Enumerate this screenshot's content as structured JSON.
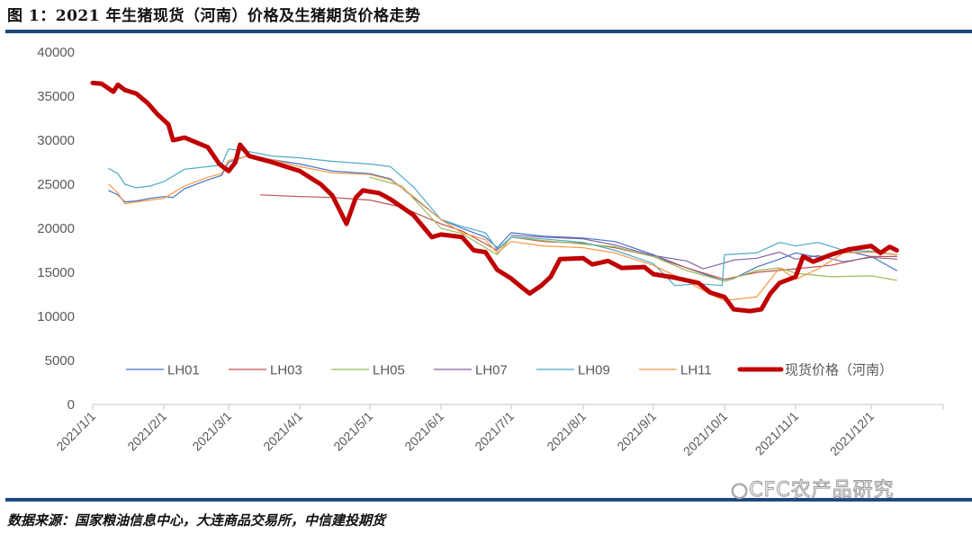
{
  "title": "图 1：2021 年生猪现货（河南）价格及生猪期货价格走势",
  "source": "数据来源：国家粮油信息中心，大连商品交易所，中信建投期货",
  "watermark": "CFC农产品研究",
  "chart_data": {
    "type": "line",
    "title": "图 1：2021 年生猪现货（河南）价格及生猪期货价格走势",
    "xlabel": "",
    "ylabel": "",
    "ylim": [
      0,
      40000
    ],
    "yticks": [
      0,
      5000,
      10000,
      15000,
      20000,
      25000,
      30000,
      35000,
      40000
    ],
    "xticks": [
      "2021/1/1",
      "2021/2/1",
      "2021/3/1",
      "2021/4/1",
      "2021/5/1",
      "2021/6/1",
      "2021/7/1",
      "2021/8/1",
      "2021/9/1",
      "2021/10/1",
      "2021/11/1",
      "2021/12/1"
    ],
    "grid": false,
    "legend_position": "inside-bottom",
    "x_unit": "date (MM-DD, 2021)",
    "series": [
      {
        "name": "LH01",
        "color": "#4472c4",
        "width": 1.2,
        "points": [
          [
            "01-08",
            24300
          ],
          [
            "01-12",
            23800
          ],
          [
            "01-15",
            23000
          ],
          [
            "01-20",
            23100
          ],
          [
            "01-26",
            23400
          ],
          [
            "02-01",
            23600
          ],
          [
            "02-05",
            23500
          ],
          [
            "02-10",
            24500
          ],
          [
            "02-20",
            25500
          ],
          [
            "02-26",
            26000
          ],
          [
            "03-01",
            27500
          ],
          [
            "03-10",
            28300
          ],
          [
            "03-20",
            27800
          ],
          [
            "04-01",
            27300
          ],
          [
            "04-15",
            26500
          ],
          [
            "05-01",
            26200
          ],
          [
            "05-10",
            25600
          ],
          [
            "05-20",
            23500
          ],
          [
            "06-01",
            21000
          ],
          [
            "06-10",
            20000
          ],
          [
            "06-20",
            19000
          ],
          [
            "06-25",
            17800
          ],
          [
            "07-01",
            19500
          ],
          [
            "07-15",
            19100
          ],
          [
            "08-01",
            18900
          ],
          [
            "08-15",
            18500
          ],
          [
            "09-01",
            17000
          ],
          [
            "09-15",
            15500
          ],
          [
            "10-01",
            14000
          ],
          [
            "10-05",
            14300
          ],
          [
            "10-15",
            15600
          ],
          [
            "10-25",
            16500
          ],
          [
            "11-01",
            17200
          ],
          [
            "11-10",
            16700
          ],
          [
            "11-20",
            17500
          ],
          [
            "12-01",
            16800
          ],
          [
            "12-10",
            15500
          ],
          [
            "12-12",
            15200
          ]
        ]
      },
      {
        "name": "LH03",
        "color": "#c0504d",
        "width": 1.2,
        "points": [
          [
            "03-15",
            23800
          ],
          [
            "04-01",
            23600
          ],
          [
            "04-15",
            23500
          ],
          [
            "05-01",
            23200
          ],
          [
            "05-15",
            22400
          ],
          [
            "06-01",
            20500
          ],
          [
            "06-10",
            19700
          ],
          [
            "06-25",
            17500
          ],
          [
            "07-01",
            19000
          ],
          [
            "07-15",
            18500
          ],
          [
            "08-01",
            18300
          ],
          [
            "08-15",
            17800
          ],
          [
            "09-01",
            16800
          ],
          [
            "09-15",
            15500
          ],
          [
            "10-01",
            14200
          ],
          [
            "10-15",
            15000
          ],
          [
            "11-01",
            15400
          ],
          [
            "11-15",
            15800
          ],
          [
            "12-01",
            16800
          ],
          [
            "12-12",
            16800
          ]
        ]
      },
      {
        "name": "LH05",
        "color": "#9bbb59",
        "width": 1.2,
        "points": [
          [
            "05-01",
            25800
          ],
          [
            "05-15",
            24800
          ],
          [
            "06-01",
            20000
          ],
          [
            "06-10",
            19400
          ],
          [
            "06-25",
            17000
          ],
          [
            "07-01",
            19000
          ],
          [
            "07-15",
            18600
          ],
          [
            "08-01",
            18200
          ],
          [
            "08-15",
            17900
          ],
          [
            "09-01",
            16800
          ],
          [
            "09-15",
            15200
          ],
          [
            "10-01",
            14000
          ],
          [
            "10-15",
            15200
          ],
          [
            "10-25",
            15500
          ],
          [
            "11-01",
            14900
          ],
          [
            "11-15",
            14500
          ],
          [
            "12-01",
            14600
          ],
          [
            "12-12",
            14100
          ]
        ]
      },
      {
        "name": "LH07",
        "color": "#8064a2",
        "width": 1.2,
        "points": [
          [
            "07-01",
            19200
          ],
          [
            "07-15",
            19000
          ],
          [
            "08-01",
            18800
          ],
          [
            "08-15",
            18100
          ],
          [
            "09-01",
            16900
          ],
          [
            "09-15",
            16300
          ],
          [
            "09-22",
            15400
          ],
          [
            "09-30",
            16000
          ],
          [
            "10-05",
            16400
          ],
          [
            "10-15",
            16600
          ],
          [
            "10-25",
            17300
          ],
          [
            "11-01",
            16500
          ],
          [
            "11-10",
            16900
          ],
          [
            "11-20",
            16200
          ],
          [
            "12-01",
            16700
          ],
          [
            "12-12",
            16500
          ]
        ]
      },
      {
        "name": "LH09",
        "color": "#4bacc6",
        "width": 1.2,
        "points": [
          [
            "01-08",
            26800
          ],
          [
            "01-12",
            26200
          ],
          [
            "01-15",
            25000
          ],
          [
            "01-20",
            24600
          ],
          [
            "01-26",
            24800
          ],
          [
            "02-01",
            25300
          ],
          [
            "02-10",
            26700
          ],
          [
            "02-20",
            27000
          ],
          [
            "02-26",
            27200
          ],
          [
            "03-01",
            29000
          ],
          [
            "03-10",
            28700
          ],
          [
            "03-20",
            28200
          ],
          [
            "04-01",
            28000
          ],
          [
            "04-15",
            27600
          ],
          [
            "05-01",
            27300
          ],
          [
            "05-10",
            27000
          ],
          [
            "05-20",
            24700
          ],
          [
            "06-01",
            21000
          ],
          [
            "06-10",
            20200
          ],
          [
            "06-20",
            19500
          ],
          [
            "06-25",
            17600
          ],
          [
            "07-01",
            19000
          ],
          [
            "07-15",
            18800
          ],
          [
            "08-01",
            18400
          ],
          [
            "08-15",
            17500
          ],
          [
            "09-01",
            16000
          ],
          [
            "09-10",
            13500
          ],
          [
            "09-20",
            13700
          ],
          [
            "09-30",
            13500
          ],
          [
            "10-01",
            17000
          ],
          [
            "10-15",
            17200
          ],
          [
            "10-25",
            18400
          ],
          [
            "11-01",
            18000
          ],
          [
            "11-10",
            18400
          ],
          [
            "11-20",
            17500
          ],
          [
            "12-01",
            17400
          ],
          [
            "12-12",
            17000
          ]
        ]
      },
      {
        "name": "LH11",
        "color": "#f79646",
        "width": 1.2,
        "points": [
          [
            "01-08",
            25000
          ],
          [
            "01-12",
            24000
          ],
          [
            "01-15",
            22800
          ],
          [
            "01-20",
            23000
          ],
          [
            "01-26",
            23200
          ],
          [
            "02-01",
            23400
          ],
          [
            "02-10",
            24800
          ],
          [
            "02-20",
            25800
          ],
          [
            "02-26",
            26200
          ],
          [
            "03-01",
            27700
          ],
          [
            "03-10",
            28200
          ],
          [
            "03-20",
            27800
          ],
          [
            "04-01",
            27000
          ],
          [
            "04-15",
            26300
          ],
          [
            "05-01",
            26100
          ],
          [
            "05-10",
            25500
          ],
          [
            "05-20",
            23600
          ],
          [
            "06-01",
            21000
          ],
          [
            "06-10",
            19500
          ],
          [
            "06-20",
            18700
          ],
          [
            "06-25",
            17200
          ],
          [
            "07-01",
            18500
          ],
          [
            "07-15",
            18000
          ],
          [
            "08-01",
            17800
          ],
          [
            "08-15",
            17200
          ],
          [
            "09-01",
            15800
          ],
          [
            "09-15",
            14000
          ],
          [
            "09-25",
            12500
          ],
          [
            "10-01",
            11800
          ],
          [
            "10-15",
            12200
          ],
          [
            "10-25",
            15500
          ],
          [
            "11-01",
            14200
          ],
          [
            "11-10",
            15400
          ],
          [
            "11-20",
            17200
          ],
          [
            "12-01",
            17300
          ],
          [
            "12-12",
            17000
          ]
        ]
      },
      {
        "name": "现货价格（河南）",
        "color": "#c00000",
        "width": 5,
        "points": [
          [
            "01-01",
            36500
          ],
          [
            "01-05",
            36400
          ],
          [
            "01-10",
            35500
          ],
          [
            "01-12",
            36300
          ],
          [
            "01-15",
            35700
          ],
          [
            "01-20",
            35300
          ],
          [
            "01-25",
            34200
          ],
          [
            "01-29",
            33000
          ],
          [
            "02-03",
            31800
          ],
          [
            "02-05",
            30000
          ],
          [
            "02-10",
            30300
          ],
          [
            "02-20",
            29200
          ],
          [
            "02-25",
            27300
          ],
          [
            "03-01",
            26500
          ],
          [
            "03-04",
            27500
          ],
          [
            "03-06",
            29500
          ],
          [
            "03-10",
            28200
          ],
          [
            "03-20",
            27500
          ],
          [
            "04-01",
            26500
          ],
          [
            "04-10",
            25000
          ],
          [
            "04-15",
            23700
          ],
          [
            "04-21",
            20500
          ],
          [
            "04-25",
            23500
          ],
          [
            "04-28",
            24300
          ],
          [
            "05-05",
            24000
          ],
          [
            "05-10",
            23300
          ],
          [
            "05-20",
            21500
          ],
          [
            "05-28",
            19000
          ],
          [
            "06-01",
            19300
          ],
          [
            "06-10",
            19000
          ],
          [
            "06-15",
            17500
          ],
          [
            "06-20",
            17300
          ],
          [
            "06-25",
            15300
          ],
          [
            "07-01",
            14300
          ],
          [
            "07-06",
            13200
          ],
          [
            "07-09",
            12600
          ],
          [
            "07-14",
            13500
          ],
          [
            "07-18",
            14500
          ],
          [
            "07-22",
            16500
          ],
          [
            "08-01",
            16600
          ],
          [
            "08-05",
            15900
          ],
          [
            "08-12",
            16300
          ],
          [
            "08-18",
            15500
          ],
          [
            "08-28",
            15600
          ],
          [
            "09-01",
            14800
          ],
          [
            "09-10",
            14400
          ],
          [
            "09-20",
            13800
          ],
          [
            "09-25",
            12700
          ],
          [
            "10-01",
            12200
          ],
          [
            "10-05",
            10800
          ],
          [
            "10-12",
            10600
          ],
          [
            "10-17",
            10800
          ],
          [
            "10-21",
            12600
          ],
          [
            "10-25",
            13800
          ],
          [
            "11-01",
            14500
          ],
          [
            "11-04",
            16800
          ],
          [
            "11-08",
            16200
          ],
          [
            "11-15",
            17000
          ],
          [
            "11-22",
            17600
          ],
          [
            "12-01",
            18000
          ],
          [
            "12-05",
            17200
          ],
          [
            "12-09",
            17900
          ],
          [
            "12-12",
            17500
          ]
        ]
      }
    ]
  },
  "legend": [
    {
      "label": "LH01"
    },
    {
      "label": "LH03"
    },
    {
      "label": "LH05"
    },
    {
      "label": "LH07"
    },
    {
      "label": "LH09"
    },
    {
      "label": "LH11"
    },
    {
      "label": "现货价格（河南）"
    }
  ],
  "axes": {
    "y_labels": [
      "40000",
      "35000",
      "30000",
      "25000",
      "20000",
      "15000",
      "10000",
      "5000",
      "0"
    ],
    "x_labels": [
      "2021/1/1",
      "2021/2/1",
      "2021/3/1",
      "2021/4/1",
      "2021/5/1",
      "2021/6/1",
      "2021/7/1",
      "2021/8/1",
      "2021/9/1",
      "2021/10/1",
      "2021/11/1",
      "2021/12/1"
    ]
  }
}
